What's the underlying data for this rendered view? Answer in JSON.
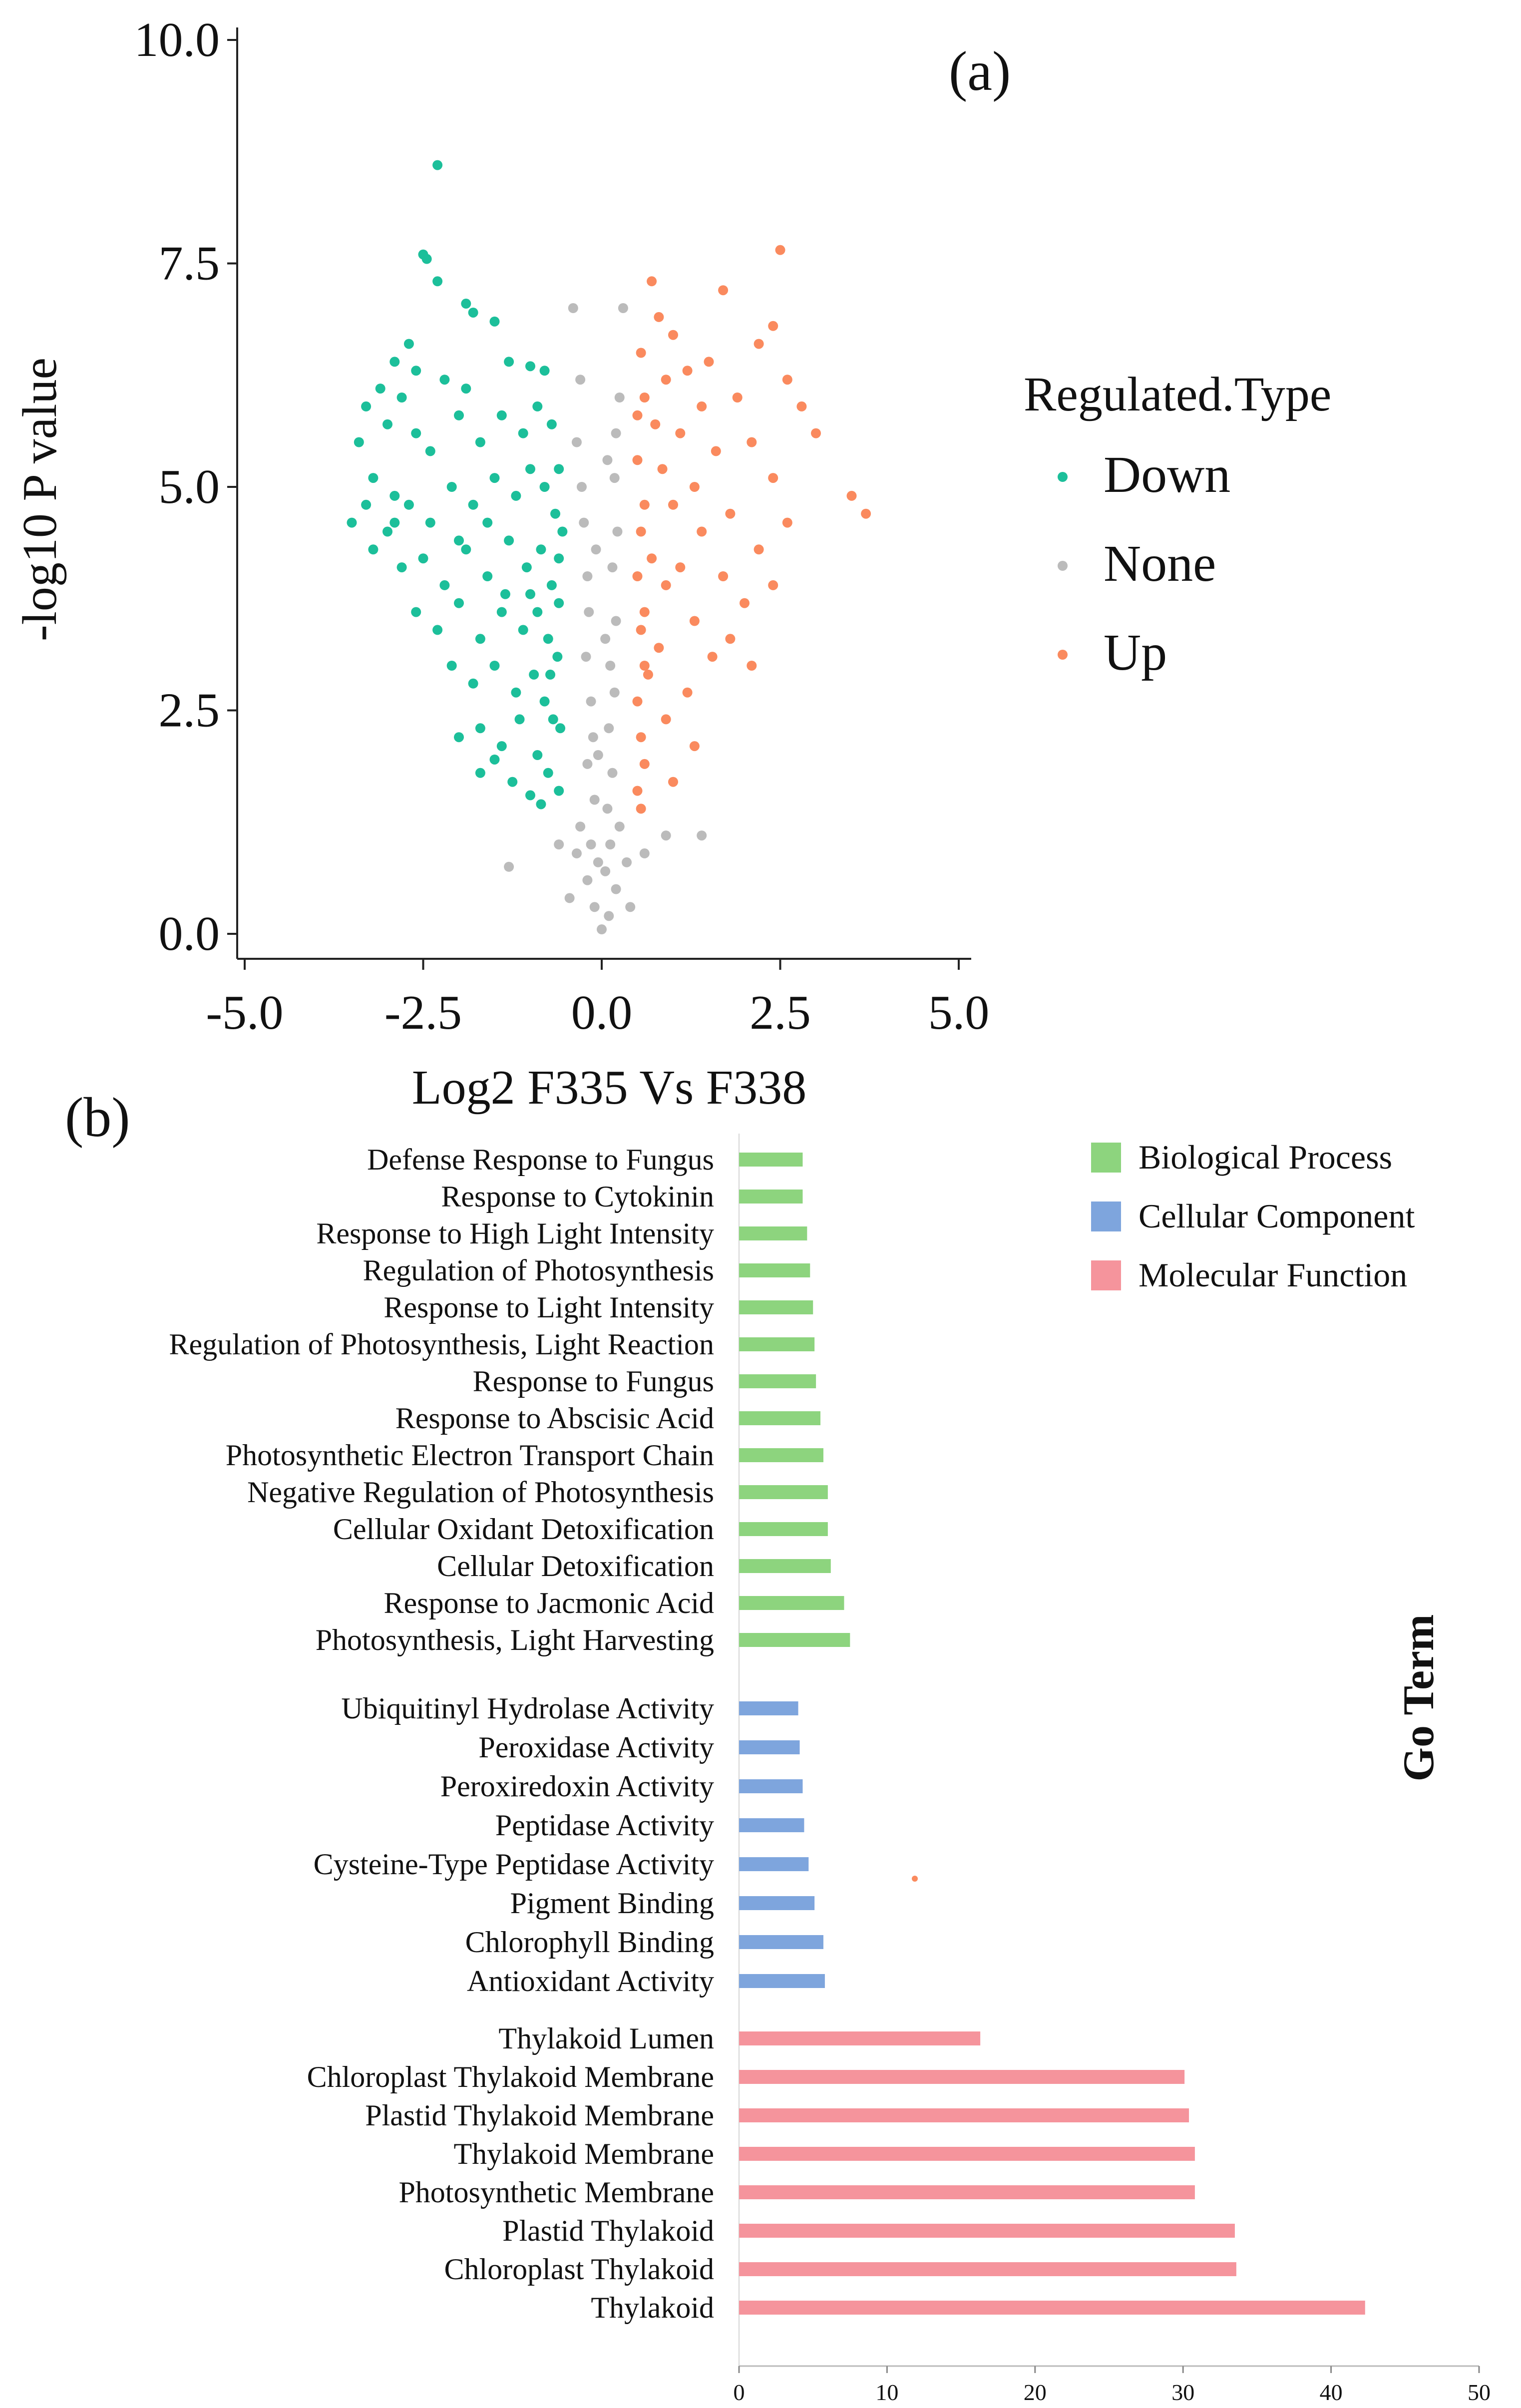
{
  "chart_data": [
    {
      "type": "scatter",
      "panel_label": "(a)",
      "title": "",
      "xlabel": "Log2 F335 Vs F338",
      "ylabel": "-log10 P value",
      "xlim": [
        -5.0,
        5.0
      ],
      "ylim": [
        0.0,
        10.0
      ],
      "xticks": [
        "-5.0",
        "-2.5",
        "0.0",
        "2.5",
        "5.0"
      ],
      "yticks": [
        "0.0",
        "2.5",
        "5.0",
        "7.5",
        "10.0"
      ],
      "grid": false,
      "legend": {
        "title": "Regulated.Type",
        "placement": "right"
      },
      "series": [
        {
          "name": "Down",
          "color": "#1cbf9a",
          "points": [
            [
              -2.3,
              8.6
            ],
            [
              -2.5,
              7.6
            ],
            [
              -2.45,
              7.55
            ],
            [
              -2.3,
              7.3
            ],
            [
              -1.9,
              7.05
            ],
            [
              -1.8,
              6.95
            ],
            [
              -1.5,
              6.85
            ],
            [
              -2.7,
              6.6
            ],
            [
              -2.9,
              6.4
            ],
            [
              -2.6,
              6.3
            ],
            [
              -3.1,
              6.1
            ],
            [
              -2.8,
              6.0
            ],
            [
              -2.2,
              6.2
            ],
            [
              -1.9,
              6.1
            ],
            [
              -1.3,
              6.4
            ],
            [
              -1.0,
              6.35
            ],
            [
              -0.8,
              6.3
            ],
            [
              -3.3,
              5.9
            ],
            [
              -3.0,
              5.7
            ],
            [
              -3.4,
              5.5
            ],
            [
              -2.6,
              5.6
            ],
            [
              -2.4,
              5.4
            ],
            [
              -2.0,
              5.8
            ],
            [
              -1.7,
              5.5
            ],
            [
              -1.4,
              5.8
            ],
            [
              -1.1,
              5.6
            ],
            [
              -0.9,
              5.9
            ],
            [
              -0.7,
              5.7
            ],
            [
              -0.6,
              5.2
            ],
            [
              -3.2,
              5.1
            ],
            [
              -2.9,
              4.9
            ],
            [
              -3.5,
              4.6
            ],
            [
              -3.0,
              4.5
            ],
            [
              -2.7,
              4.8
            ],
            [
              -2.4,
              4.6
            ],
            [
              -2.1,
              5.0
            ],
            [
              -1.8,
              4.8
            ],
            [
              -1.5,
              5.1
            ],
            [
              -1.2,
              4.9
            ],
            [
              -1.0,
              5.2
            ],
            [
              -0.8,
              5.0
            ],
            [
              -0.65,
              4.7
            ],
            [
              -0.55,
              4.5
            ],
            [
              -3.2,
              4.3
            ],
            [
              -2.8,
              4.1
            ],
            [
              -2.5,
              4.2
            ],
            [
              -2.2,
              3.9
            ],
            [
              -1.9,
              4.3
            ],
            [
              -1.6,
              4.0
            ],
            [
              -1.3,
              4.4
            ],
            [
              -1.05,
              4.1
            ],
            [
              -0.85,
              4.3
            ],
            [
              -0.7,
              3.9
            ],
            [
              -0.6,
              3.7
            ],
            [
              -2.6,
              3.6
            ],
            [
              -2.3,
              3.4
            ],
            [
              -2.0,
              3.7
            ],
            [
              -1.7,
              3.3
            ],
            [
              -1.4,
              3.6
            ],
            [
              -1.1,
              3.4
            ],
            [
              -0.9,
              3.6
            ],
            [
              -0.75,
              3.3
            ],
            [
              -0.62,
              3.1
            ],
            [
              -2.1,
              3.0
            ],
            [
              -1.8,
              2.8
            ],
            [
              -1.5,
              3.0
            ],
            [
              -1.2,
              2.7
            ],
            [
              -0.95,
              2.9
            ],
            [
              -0.8,
              2.6
            ],
            [
              -0.68,
              2.4
            ],
            [
              -2.0,
              2.2
            ],
            [
              -1.7,
              2.3
            ],
            [
              -1.4,
              2.1
            ],
            [
              -1.15,
              2.4
            ],
            [
              -0.9,
              2.0
            ],
            [
              -0.75,
              1.8
            ],
            [
              -0.6,
              1.6
            ],
            [
              -1.7,
              1.8
            ],
            [
              -1.5,
              1.95
            ],
            [
              -1.25,
              1.7
            ],
            [
              -1.0,
              1.55
            ],
            [
              -0.85,
              1.45
            ],
            [
              -2.9,
              4.6
            ],
            [
              -3.3,
              4.8
            ],
            [
              -2.0,
              4.4
            ],
            [
              -1.6,
              4.6
            ],
            [
              -1.35,
              3.8
            ],
            [
              -1.0,
              3.8
            ],
            [
              -0.72,
              2.9
            ],
            [
              -0.58,
              2.3
            ],
            [
              -0.6,
              4.2
            ]
          ]
        },
        {
          "name": "None",
          "color": "#bbbbbb",
          "points": [
            [
              -0.4,
              7.0
            ],
            [
              0.3,
              7.0
            ],
            [
              -0.3,
              6.2
            ],
            [
              0.25,
              6.0
            ],
            [
              -0.35,
              5.5
            ],
            [
              0.2,
              5.6
            ],
            [
              -0.28,
              5.0
            ],
            [
              0.18,
              5.1
            ],
            [
              -0.25,
              4.6
            ],
            [
              0.22,
              4.5
            ],
            [
              -0.2,
              4.0
            ],
            [
              0.15,
              4.1
            ],
            [
              -0.18,
              3.6
            ],
            [
              0.2,
              3.5
            ],
            [
              -0.22,
              3.1
            ],
            [
              0.12,
              3.0
            ],
            [
              -0.15,
              2.6
            ],
            [
              0.18,
              2.7
            ],
            [
              -0.12,
              2.2
            ],
            [
              0.1,
              2.3
            ],
            [
              -0.2,
              1.9
            ],
            [
              0.15,
              1.8
            ],
            [
              -0.1,
              1.5
            ],
            [
              0.08,
              1.4
            ],
            [
              -0.3,
              1.2
            ],
            [
              0.25,
              1.2
            ],
            [
              -0.15,
              1.0
            ],
            [
              0.12,
              1.0
            ],
            [
              -0.05,
              0.8
            ],
            [
              0.05,
              0.7
            ],
            [
              -0.2,
              0.6
            ],
            [
              0.2,
              0.5
            ],
            [
              -0.1,
              0.3
            ],
            [
              0.1,
              0.2
            ],
            [
              0.0,
              0.05
            ],
            [
              -0.35,
              0.9
            ],
            [
              0.35,
              0.8
            ],
            [
              -0.45,
              0.4
            ],
            [
              0.4,
              0.3
            ],
            [
              -1.3,
              0.75
            ],
            [
              0.9,
              1.1
            ],
            [
              1.4,
              1.1
            ],
            [
              -0.6,
              1.0
            ],
            [
              0.6,
              0.9
            ],
            [
              -0.05,
              2.0
            ],
            [
              0.05,
              3.3
            ],
            [
              -0.08,
              4.3
            ],
            [
              0.08,
              5.3
            ]
          ]
        },
        {
          "name": "Up",
          "color": "#fa8a5e",
          "points": [
            [
              2.5,
              7.65
            ],
            [
              0.7,
              7.3
            ],
            [
              1.7,
              7.2
            ],
            [
              2.4,
              6.8
            ],
            [
              0.8,
              6.9
            ],
            [
              1.0,
              6.7
            ],
            [
              0.55,
              6.5
            ],
            [
              2.2,
              6.6
            ],
            [
              1.5,
              6.4
            ],
            [
              1.2,
              6.3
            ],
            [
              0.9,
              6.2
            ],
            [
              2.6,
              6.2
            ],
            [
              1.9,
              6.0
            ],
            [
              0.6,
              6.0
            ],
            [
              1.4,
              5.9
            ],
            [
              2.8,
              5.9
            ],
            [
              0.75,
              5.7
            ],
            [
              1.1,
              5.6
            ],
            [
              3.0,
              5.6
            ],
            [
              2.1,
              5.5
            ],
            [
              1.6,
              5.4
            ],
            [
              0.5,
              5.3
            ],
            [
              0.85,
              5.2
            ],
            [
              2.4,
              5.1
            ],
            [
              1.3,
              5.0
            ],
            [
              3.5,
              4.9
            ],
            [
              0.6,
              4.8
            ],
            [
              1.0,
              4.8
            ],
            [
              3.7,
              4.7
            ],
            [
              1.8,
              4.7
            ],
            [
              2.6,
              4.6
            ],
            [
              0.55,
              4.5
            ],
            [
              1.4,
              4.5
            ],
            [
              2.2,
              4.3
            ],
            [
              0.7,
              4.2
            ],
            [
              1.1,
              4.1
            ],
            [
              0.5,
              4.0
            ],
            [
              1.7,
              4.0
            ],
            [
              0.9,
              3.9
            ],
            [
              2.0,
              3.7
            ],
            [
              0.6,
              3.6
            ],
            [
              1.3,
              3.5
            ],
            [
              0.55,
              3.4
            ],
            [
              1.8,
              3.3
            ],
            [
              0.8,
              3.2
            ],
            [
              2.1,
              3.0
            ],
            [
              0.65,
              2.9
            ],
            [
              1.2,
              2.7
            ],
            [
              0.5,
              2.6
            ],
            [
              0.9,
              2.4
            ],
            [
              0.55,
              2.2
            ],
            [
              1.3,
              2.1
            ],
            [
              0.6,
              1.9
            ],
            [
              1.0,
              1.7
            ],
            [
              0.5,
              1.6
            ],
            [
              0.55,
              1.4
            ],
            [
              1.55,
              3.1
            ],
            [
              2.4,
              3.9
            ],
            [
              0.5,
              5.8
            ],
            [
              0.6,
              3.0
            ]
          ]
        }
      ]
    },
    {
      "type": "bar",
      "orientation": "horizontal",
      "panel_label": "(b)",
      "title": "",
      "xlabel": "",
      "ylabel": "Go Term",
      "xlim": [
        0,
        50
      ],
      "xticks": [
        "0",
        "10",
        "20",
        "30",
        "40",
        "50"
      ],
      "grid": false,
      "legend": {
        "placement": "top-right"
      },
      "groups": [
        {
          "name": "Biological Process",
          "color": "#8dd47e",
          "categories": [
            "Defense Response to Fungus",
            "Response to Cytokinin",
            "Response to High Light Intensity",
            "Regulation of Photosynthesis",
            "Response to Light Intensity",
            "Regulation of Photosynthesis, Light Reaction",
            "Response to Fungus",
            "Response to Abscisic Acid",
            "Photosynthetic Electron Transport Chain",
            "Negative Regulation of Photosynthesis",
            "Cellular Oxidant Detoxification",
            "Cellular Detoxification",
            "Response to Jacmonic Acid",
            "Photosynthesis, Light Harvesting"
          ],
          "values": [
            4.3,
            4.3,
            4.6,
            4.8,
            5.0,
            5.1,
            5.2,
            5.5,
            5.7,
            6.0,
            6.0,
            6.2,
            7.1,
            7.5
          ]
        },
        {
          "name": "Cellular Component",
          "color": "#7ea5dd",
          "categories": [
            "Ubiquitinyl Hydrolase Activity",
            "Peroxidase Activity",
            "Peroxiredoxin Activity",
            "Peptidase Activity",
            "Cysteine-Type Peptidase Activity",
            "Pigment Binding",
            "Chlorophyll Binding",
            "Antioxidant Activity"
          ],
          "values": [
            4.0,
            4.1,
            4.3,
            4.4,
            4.7,
            5.1,
            5.7,
            5.8
          ]
        },
        {
          "name": "Molecular Function",
          "color": "#f5949c",
          "categories": [
            "Thylakoid Lumen",
            "Chloroplast Thylakoid Membrane",
            "Plastid Thylakoid Membrane",
            "Thylakoid Membrane",
            "Photosynthetic Membrane",
            "Plastid Thylakoid",
            "Chloroplast Thylakoid",
            "Thylakoid"
          ],
          "values": [
            16.3,
            30.1,
            30.4,
            30.8,
            30.8,
            33.5,
            33.6,
            42.3
          ]
        }
      ]
    }
  ]
}
